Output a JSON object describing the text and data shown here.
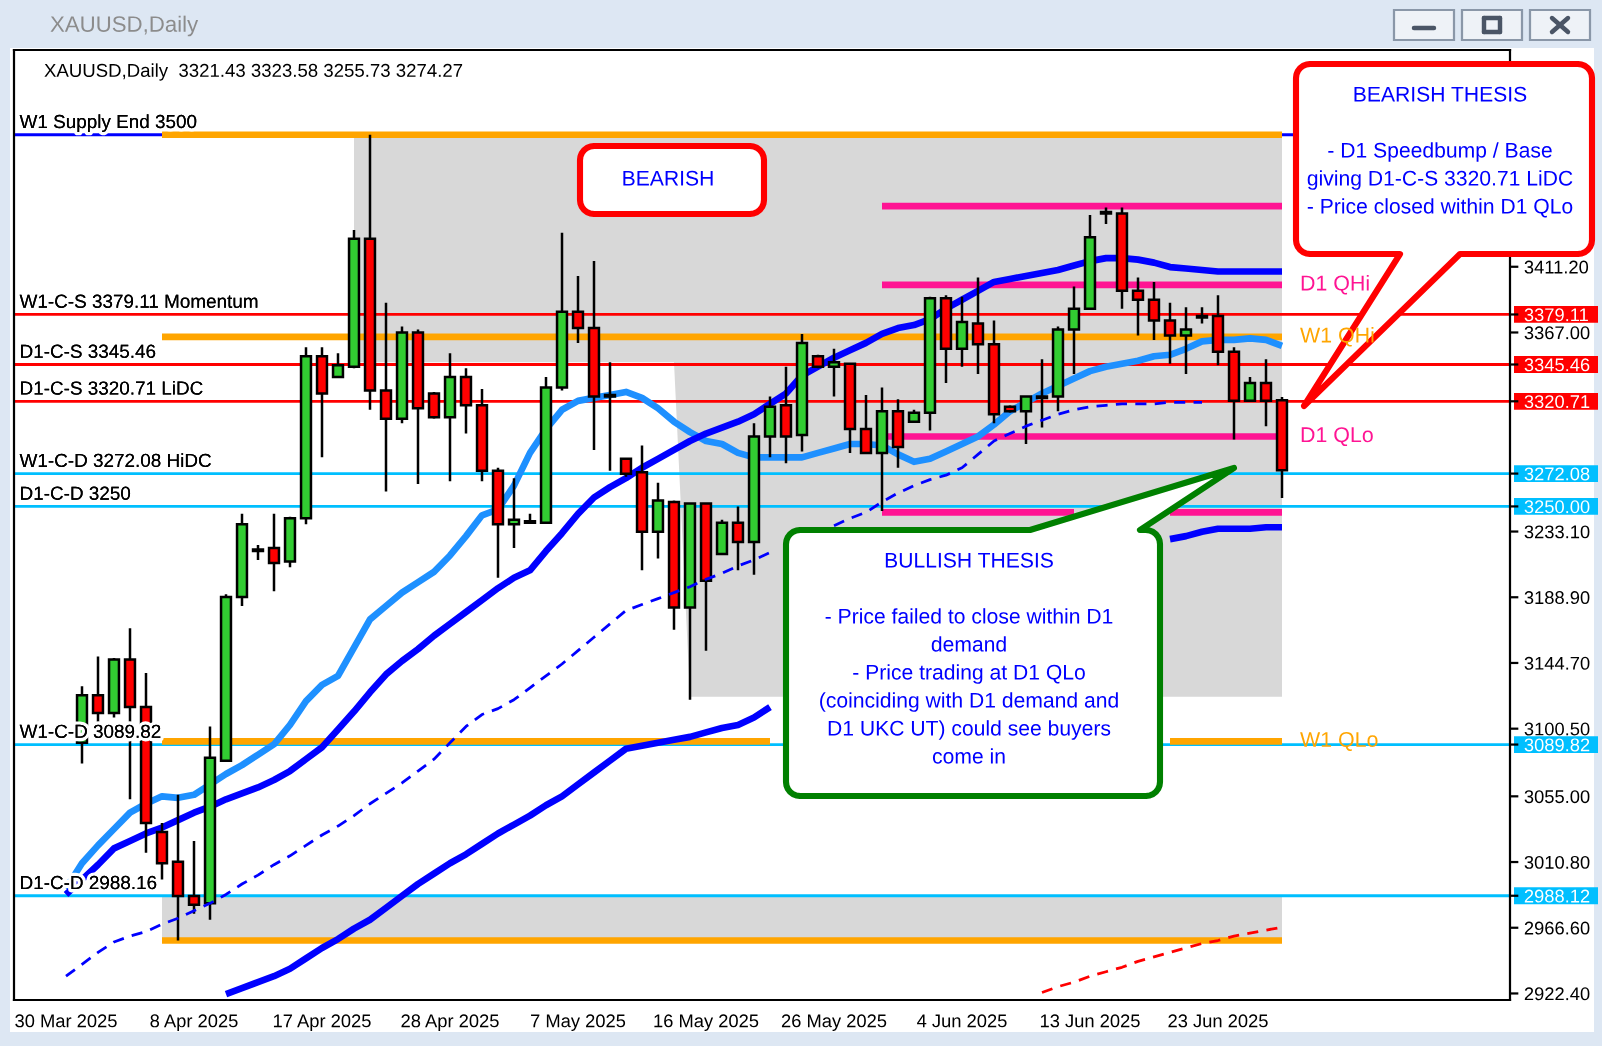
{
  "chart_data": {
    "type": "candlestick",
    "title": "XAUUSD,Daily",
    "subtitle": "XAUUSD,Daily  3321.43 3323.58 3255.73 3274.27",
    "categories": [
      "30 Mar 2025",
      null,
      null,
      null,
      null,
      null,
      null,
      null,
      "8 Apr 2025",
      null,
      null,
      null,
      null,
      null,
      null,
      null,
      "17 Apr 2025",
      null,
      null,
      null,
      null,
      null,
      null,
      null,
      "28 Apr 2025",
      null,
      null,
      null,
      null,
      null,
      null,
      null,
      "7 May 2025",
      null,
      null,
      null,
      null,
      null,
      null,
      null,
      "16 May 2025",
      null,
      null,
      null,
      null,
      null,
      null,
      null,
      "26 May 2025",
      null,
      null,
      null,
      null,
      null,
      null,
      null,
      "4 Jun 2025",
      null,
      null,
      null,
      null,
      null,
      null,
      null,
      "13 Jun 2025",
      null,
      null,
      null,
      null,
      null,
      null,
      null,
      "23 Jun 2025",
      null,
      null,
      null,
      null
    ],
    "ylim": [
      2918,
      3557
    ],
    "yticks": [
      {
        "value": 3411.2,
        "label": "3411.20"
      },
      {
        "value": 3379.11,
        "label": "3379.11"
      },
      {
        "value": 3367,
        "label": "3367.00"
      },
      {
        "value": 3345.46,
        "label": "3345.46"
      },
      {
        "value": 3320.71,
        "label": "3320.71"
      },
      {
        "value": 3272.08,
        "label": "3272.08"
      },
      {
        "value": 3250,
        "label": "3250.00"
      },
      {
        "value": 3233.1,
        "label": "3233.10"
      },
      {
        "value": 3188.9,
        "label": "3188.90"
      },
      {
        "value": 3144.7,
        "label": "3144.70"
      },
      {
        "value": 3100.5,
        "label": "3100.50"
      },
      {
        "value": 3089.82,
        "label": "3089.82"
      },
      {
        "value": 3055,
        "label": "3055.00"
      },
      {
        "value": 3010.8,
        "label": "3010.80"
      },
      {
        "value": 2988.12,
        "label": "2988.12"
      },
      {
        "value": 2966.6,
        "label": "2966.60"
      },
      {
        "value": 2922.4,
        "label": "2922.40"
      }
    ],
    "series": [
      {
        "type": "line",
        "color": "#ffa500",
        "values": [
          null,
          null,
          null,
          null,
          null,
          null,
          3500,
          3500,
          3500,
          3500,
          3500,
          3500,
          3500,
          3500,
          3500,
          3500,
          3500,
          3500,
          3500,
          3500,
          3500,
          3500,
          3500,
          3500,
          3500,
          3500,
          3500,
          3500,
          3500,
          3500,
          3500,
          3500,
          3500,
          3500,
          3500,
          3500,
          3500,
          3500,
          3500,
          3500,
          3500,
          3500,
          3500,
          3500,
          3500,
          3500,
          3500,
          3500,
          3500,
          3500,
          3500,
          3500,
          3500,
          3500,
          3500,
          3500,
          3500,
          3500,
          3500,
          3500,
          3500,
          3500,
          3500,
          3500,
          3500,
          3500,
          3500,
          3500,
          3500,
          3500,
          3500,
          3500,
          3500,
          3500,
          3500,
          3500,
          3500
        ],
        "upper": [
          null,
          null,
          null,
          null,
          null,
          null,
          null,
          null,
          null,
          null,
          null,
          null,
          null,
          null,
          null,
          null,
          null,
          null,
          3500,
          3500,
          3500,
          3500,
          3500,
          3500,
          3500,
          3500,
          3500,
          3500,
          3500,
          3500,
          3500,
          3500,
          3500,
          3500,
          3500,
          3500,
          3500,
          3500,
          3500,
          3500,
          3500,
          3500,
          3500,
          3500,
          3500,
          3500,
          null,
          null,
          null,
          null,
          null,
          null,
          null,
          null,
          null,
          null,
          null,
          null,
          null,
          null,
          null,
          null,
          null,
          null,
          null,
          null,
          null,
          null,
          null,
          3500,
          3500,
          3500,
          3500,
          3500,
          3500,
          3500,
          3500
        ],
        "lower": [
          null,
          null,
          null,
          null,
          null,
          null,
          null,
          null,
          null,
          null,
          null,
          null,
          null,
          null,
          null,
          null,
          null,
          null,
          3347,
          3347,
          3347,
          3347,
          3347,
          3347,
          3347,
          3347,
          3347,
          3347,
          3347,
          3347,
          3347,
          3347,
          3347,
          3347,
          3347,
          3347,
          3347,
          3347,
          3347,
          3122,
          3122,
          3122,
          3122,
          3122,
          3122,
          3122,
          null,
          null,
          null,
          null,
          null,
          null,
          null,
          null,
          null,
          null,
          null,
          null,
          null,
          null,
          null,
          null,
          null,
          null,
          null,
          null,
          null,
          null,
          null,
          3122,
          3122,
          3122,
          3122,
          3122,
          3122,
          3122,
          3122
        ]
      },
      {
        "type": "line",
        "color": "#ffa500",
        "name": "W1 QHi",
        "values": [
          null,
          null,
          null,
          null,
          null,
          null,
          3364,
          3364,
          3364,
          3364,
          3364,
          3364,
          3364,
          3364,
          3364,
          3364,
          3364,
          3364,
          3364,
          3364,
          3364,
          3364,
          3364,
          3364,
          3364,
          3364,
          3364,
          3364,
          3364,
          3364,
          3364,
          3364,
          3364,
          3364,
          3364,
          3364,
          3364,
          3364,
          3364,
          3364,
          3364,
          3364,
          3364,
          3364,
          3364,
          3364,
          3364,
          3364,
          3364,
          3364,
          3364,
          3364,
          3364,
          3364,
          3364,
          3364,
          3364,
          3364,
          3364,
          3364,
          3364,
          3364,
          3364,
          3364,
          3364,
          3364,
          3364,
          3364,
          3364,
          3364,
          3364,
          3364,
          3364,
          3364,
          3364,
          3364,
          3364
        ]
      },
      {
        "type": "line",
        "color": "#ffa500",
        "name": "W1 QLo",
        "values": [
          null,
          null,
          null,
          null,
          null,
          null,
          3092,
          3092,
          3092,
          3092,
          3092,
          3092,
          3092,
          3092,
          3092,
          3092,
          3092,
          3092,
          3092,
          3092,
          3092,
          3092,
          3092,
          3092,
          3092,
          3092,
          3092,
          3092,
          3092,
          3092,
          3092,
          3092,
          3092,
          3092,
          3092,
          3092,
          3092,
          3092,
          3092,
          3092,
          3092,
          3092,
          3092,
          3092,
          3092,
          null,
          null,
          null,
          null,
          null,
          null,
          null,
          null,
          null,
          null,
          null,
          null,
          null,
          null,
          null,
          null,
          null,
          null,
          null,
          null,
          null,
          null,
          null,
          null,
          3092,
          3092,
          3092,
          3092,
          3092,
          3092,
          3092,
          3092
        ]
      },
      {
        "type": "line",
        "color": "#ffa500",
        "values": [
          null,
          null,
          null,
          null,
          null,
          null,
          2958,
          2958,
          2958,
          2958,
          2958,
          2958,
          2958,
          2958,
          2958,
          2958,
          2958,
          2958,
          2958,
          2958,
          2958,
          2958,
          2958,
          2958,
          2958,
          2958,
          2958,
          2958,
          2958,
          2958,
          2958,
          2958,
          2958,
          2958,
          2958,
          2958,
          2958,
          2958,
          2958,
          2958,
          2958,
          2958,
          2958,
          2958,
          2958,
          2958,
          2958,
          2958,
          2958,
          2958,
          2958,
          2958,
          2958,
          2958,
          2958,
          2958,
          2958,
          2958,
          2958,
          2958,
          2958,
          2958,
          2958,
          2958,
          2958,
          2958,
          2958,
          2958,
          2958,
          2958,
          2958,
          2958,
          2958,
          2958,
          2958,
          2958,
          2958
        ],
        "upper": [
          null,
          null,
          null,
          null,
          null,
          null,
          2988,
          2988,
          2988,
          2988,
          2988,
          2988,
          2988,
          2988,
          2988,
          2988,
          2988,
          2988,
          2988,
          2988,
          2988,
          2988,
          2988,
          2988,
          2988,
          2988,
          2988,
          2988,
          2988,
          2988,
          2988,
          2988,
          2988,
          2988,
          2988,
          2988,
          2988,
          2988,
          2988,
          2988,
          2988,
          2988,
          2988,
          2988,
          2988,
          2988,
          2988,
          2988,
          2988,
          2988,
          2988,
          2988,
          2988,
          2988,
          2988,
          2988,
          2988,
          2988,
          2988,
          2988,
          2988,
          2988,
          2988,
          2988,
          2988,
          2988,
          2988,
          2988,
          2988,
          2988,
          2988,
          2988,
          2988,
          2988,
          2988,
          2988,
          2988
        ],
        "lower": [
          null,
          null,
          null,
          null,
          null,
          null,
          2958,
          2958,
          2958,
          2958,
          2958,
          2958,
          2958,
          2958,
          2958,
          2958,
          2958,
          2958,
          2958,
          2958,
          2958,
          2958,
          2958,
          2958,
          2958,
          2958,
          2958,
          2958,
          2958,
          2958,
          2958,
          2958,
          2958,
          2958,
          2958,
          2958,
          2958,
          2958,
          2958,
          2958,
          2958,
          2958,
          2958,
          2958,
          2958,
          2958,
          2958,
          2958,
          2958,
          2958,
          2958,
          2958,
          2958,
          2958,
          2958,
          2958,
          2958,
          2958,
          2958,
          2958,
          2958,
          2958,
          2958,
          2958,
          2958,
          2958,
          2958,
          2958,
          2958,
          2958,
          2958,
          2958,
          2958,
          2958,
          2958,
          2958,
          2958
        ]
      },
      {
        "type": "line",
        "color": "#ff1493",
        "values": [
          null,
          null,
          null,
          null,
          null,
          null,
          null,
          null,
          null,
          null,
          null,
          null,
          null,
          null,
          null,
          null,
          null,
          null,
          null,
          null,
          null,
          null,
          null,
          null,
          null,
          null,
          null,
          null,
          null,
          null,
          null,
          null,
          null,
          null,
          null,
          null,
          null,
          null,
          null,
          null,
          null,
          null,
          null,
          null,
          null,
          null,
          null,
          null,
          null,
          null,
          null,
          3452,
          3452,
          3452,
          3452,
          3452,
          3452,
          3452,
          3452,
          3452,
          3452,
          3452,
          3452,
          3452,
          3452,
          3452,
          3452,
          3452,
          3452,
          3452,
          3452,
          3452,
          3452,
          3452,
          3452,
          3452,
          3452
        ]
      },
      {
        "type": "line",
        "color": "#ff1493",
        "name": "D1 QHi",
        "values": [
          null,
          null,
          null,
          null,
          null,
          null,
          null,
          null,
          null,
          null,
          null,
          null,
          null,
          null,
          null,
          null,
          null,
          null,
          null,
          null,
          null,
          null,
          null,
          null,
          null,
          null,
          null,
          null,
          null,
          null,
          null,
          null,
          null,
          null,
          null,
          null,
          null,
          null,
          null,
          null,
          null,
          null,
          null,
          null,
          null,
          null,
          null,
          null,
          null,
          null,
          null,
          3399,
          3399,
          3399,
          3399,
          3399,
          3399,
          3399,
          3399,
          3399,
          3399,
          3399,
          3399,
          3399,
          3399,
          3399,
          3399,
          3399,
          3399,
          3399,
          3399,
          3399,
          3399,
          3399,
          3399,
          3399,
          3399
        ]
      },
      {
        "type": "line",
        "color": "#ff1493",
        "name": "D1 QLo",
        "values": [
          null,
          null,
          null,
          null,
          null,
          null,
          null,
          null,
          null,
          null,
          null,
          null,
          null,
          null,
          null,
          null,
          null,
          null,
          null,
          null,
          null,
          null,
          null,
          null,
          null,
          null,
          null,
          null,
          null,
          null,
          null,
          null,
          null,
          null,
          null,
          null,
          null,
          null,
          null,
          null,
          null,
          null,
          null,
          null,
          null,
          null,
          null,
          null,
          null,
          null,
          null,
          3297,
          3297,
          3297,
          3297,
          3297,
          3297,
          3297,
          3297,
          3297,
          3297,
          3297,
          3297,
          3297,
          3297,
          3297,
          3297,
          3297,
          3297,
          3297,
          3297,
          3297,
          3297,
          3297,
          3297,
          3297,
          3297
        ]
      },
      {
        "type": "line",
        "color": "#ff1493",
        "values": [
          null,
          null,
          null,
          null,
          null,
          null,
          null,
          null,
          null,
          null,
          null,
          null,
          null,
          null,
          null,
          null,
          null,
          null,
          null,
          null,
          null,
          null,
          null,
          null,
          null,
          null,
          null,
          null,
          null,
          null,
          null,
          null,
          null,
          null,
          null,
          null,
          null,
          null,
          null,
          null,
          null,
          null,
          null,
          null,
          null,
          null,
          null,
          null,
          null,
          null,
          null,
          3246,
          3246,
          3246,
          3246,
          3246,
          3246,
          3246,
          3246,
          3246,
          3246,
          3246,
          3246,
          3246,
          null,
          null,
          null,
          null,
          null,
          3246,
          3246,
          3246,
          3246,
          3246,
          3246,
          3246,
          3246
        ]
      },
      {
        "type": "line",
        "color": "#1e90ff",
        "values": [
          2993,
          3010,
          3022,
          3033,
          3044,
          3050,
          3055,
          3054,
          3056,
          3063,
          3070,
          3076,
          3083,
          3090,
          3103,
          3119,
          3130,
          3136,
          3155,
          3174,
          3183,
          3192,
          3199,
          3206,
          3217,
          3230,
          3244,
          3248,
          3264,
          3286,
          3302,
          3315,
          3321,
          3323,
          3325,
          3327,
          3323,
          3316,
          3307,
          3300,
          3294,
          3292,
          3286,
          3283,
          3283,
          3283,
          3283,
          3286,
          3289,
          3292,
          3292,
          3291,
          3285,
          3280,
          3282,
          3287,
          3292,
          3297,
          3305,
          3314,
          3320,
          3326,
          3331,
          3336,
          3341,
          3344,
          3346,
          3348,
          3351,
          3352,
          3356,
          3361,
          3362,
          3362,
          3363,
          3362,
          3358
        ]
      },
      {
        "type": "line",
        "color": "#0000ff",
        "values": [
          2989,
          2999,
          3009,
          3020,
          3025,
          3030,
          3034,
          3039,
          3044,
          3048,
          3053,
          3057,
          3061,
          3066,
          3072,
          3080,
          3088,
          3100,
          3112,
          3125,
          3137,
          3146,
          3154,
          3163,
          3171,
          3179,
          3187,
          3195,
          3202,
          3207,
          3220,
          3232,
          3245,
          3256,
          3263,
          3269,
          3276,
          3282,
          3288,
          3294,
          3299,
          3303,
          3307,
          3312,
          3319,
          3326,
          3338,
          3344,
          3350,
          3355,
          3360,
          3366,
          3370,
          3372,
          3376,
          3383,
          3389,
          3395,
          3401,
          3403,
          3405,
          3407,
          3409,
          3412,
          3415,
          3417,
          3417,
          3416,
          3414,
          3411,
          3410,
          3409,
          3408,
          3408,
          3408,
          3408,
          3408
        ]
      },
      {
        "type": "line",
        "color": "#0000ff",
        "line_style": "dashed",
        "values": [
          2934,
          2942,
          2950,
          2957,
          2961,
          2964,
          2969,
          2973,
          2978,
          2983,
          2989,
          2996,
          3002,
          3009,
          3015,
          3022,
          3029,
          3035,
          3042,
          3050,
          3057,
          3064,
          3072,
          3080,
          3091,
          3102,
          3110,
          3114,
          3120,
          3128,
          3136,
          3144,
          3153,
          3162,
          3171,
          3180,
          3184,
          3188,
          3192,
          3196,
          3201,
          3205,
          3210,
          3214,
          3219,
          null,
          null,
          null,
          3237,
          3242,
          3246,
          3253,
          3259,
          3264,
          3268,
          3271,
          3276,
          3285,
          3294,
          3299,
          3304,
          3308,
          3312,
          3315,
          3317,
          3318,
          3319,
          3319,
          3319,
          3320,
          3320,
          3320,
          null,
          null,
          null,
          null,
          null
        ]
      },
      {
        "type": "line",
        "color": "#ff0000",
        "line_style": "dashed",
        "values": [
          null,
          null,
          null,
          null,
          null,
          null,
          null,
          null,
          null,
          null,
          null,
          null,
          null,
          null,
          null,
          null,
          null,
          null,
          null,
          null,
          null,
          null,
          null,
          null,
          null,
          null,
          null,
          null,
          null,
          null,
          null,
          null,
          null,
          null,
          null,
          null,
          null,
          null,
          null,
          null,
          null,
          null,
          null,
          null,
          null,
          null,
          null,
          null,
          null,
          null,
          null,
          null,
          null,
          null,
          null,
          null,
          null,
          null,
          null,
          null,
          null,
          2923,
          2927,
          2930,
          2934,
          2937,
          2940,
          2944,
          2947,
          2950,
          2953,
          2956,
          2958,
          2961,
          2963,
          2965,
          2967
        ]
      },
      {
        "type": "line",
        "color": "#0000ff",
        "values": [
          null,
          null,
          null,
          null,
          null,
          null,
          null,
          null,
          null,
          null,
          2922,
          2926,
          2930,
          2934,
          2939,
          2946,
          2953,
          2959,
          2966,
          2972,
          2980,
          2988,
          2996,
          3003,
          3010,
          3016,
          3023,
          3030,
          3036,
          3042,
          3049,
          3055,
          3063,
          3071,
          3079,
          3087,
          3089,
          3091,
          3093,
          3095,
          3098,
          3101,
          3103,
          3108,
          3115,
          null,
          null,
          null,
          null,
          null,
          null,
          null,
          null,
          null,
          null,
          null,
          null,
          null,
          null,
          null,
          null,
          null,
          null,
          null,
          null,
          null,
          null,
          null,
          null,
          3228,
          3230,
          3233,
          3235,
          3235,
          3235,
          3236,
          3236
        ]
      },
      {
        "ohlc": [
          null,
          [
            3091,
            3129,
            3077,
            3123
          ],
          [
            3123,
            3149,
            3102,
            3111
          ],
          [
            3111,
            3148,
            3108,
            3147
          ],
          [
            3147,
            3168,
            3053,
            3115
          ],
          [
            3115,
            3138,
            3017,
            3037
          ],
          [
            3031,
            3037,
            2999,
            3010
          ],
          [
            3011,
            3056,
            2958,
            2988
          ],
          [
            2988,
            3025,
            2976,
            2982
          ],
          [
            2983,
            3102,
            2972,
            3081
          ],
          [
            3079,
            3191,
            3079,
            3189
          ],
          [
            3189,
            3245,
            3183,
            3238
          ],
          [
            3221,
            3224,
            3214,
            3220
          ],
          [
            3222,
            3245,
            3193,
            3212
          ],
          [
            3213,
            3243,
            3209,
            3242
          ],
          [
            3242,
            3357,
            3238,
            3351
          ],
          [
            3351,
            3357,
            3283,
            3326
          ],
          [
            3337,
            3353,
            3337,
            3345
          ],
          [
            3344,
            3436,
            3343,
            3430
          ],
          [
            3430,
            3500,
            3315,
            3328
          ],
          [
            3328,
            3387,
            3260,
            3309
          ],
          [
            3309,
            3371,
            3306,
            3367
          ],
          [
            3367,
            3369,
            3265,
            3316
          ],
          [
            3326,
            3327,
            3309,
            3310
          ],
          [
            3310,
            3353,
            3267,
            3337
          ],
          [
            3337,
            3343,
            3299,
            3318
          ],
          [
            3318,
            3329,
            3267,
            3274
          ],
          [
            3274,
            3276,
            3202,
            3238
          ],
          [
            3238,
            3269,
            3222,
            3241
          ],
          [
            3240,
            3245,
            3239,
            3239
          ],
          [
            3239,
            3337,
            3239,
            3330
          ],
          [
            3330,
            3434,
            3328,
            3381
          ],
          [
            3381,
            3405,
            3360,
            3370
          ],
          [
            3370,
            3415,
            3288,
            3324
          ],
          [
            3325,
            3347,
            3274,
            3324
          ],
          [
            3282,
            3282,
            3270,
            3272
          ],
          [
            3273,
            3291,
            3207,
            3233
          ],
          [
            3233,
            3266,
            3215,
            3254
          ],
          [
            3253,
            3254,
            3167,
            3182
          ],
          [
            3182,
            3252,
            3120,
            3252
          ],
          [
            3252,
            3252,
            3153,
            3200
          ],
          [
            3218,
            3241,
            3218,
            3239
          ],
          [
            3239,
            3250,
            3207,
            3226
          ],
          [
            3226,
            3306,
            3204,
            3297
          ],
          [
            3297,
            3324,
            3283,
            3317
          ],
          [
            3318,
            3344,
            3279,
            3297
          ],
          [
            3298,
            3366,
            3287,
            3360
          ],
          [
            3351,
            3352,
            3343,
            3344
          ],
          [
            3344,
            3356,
            3324,
            3347
          ],
          [
            3346,
            3346,
            3286,
            3302
          ],
          [
            3302,
            3325,
            3286,
            3286
          ],
          [
            3286,
            3330,
            3247,
            3314
          ],
          [
            3314,
            3322,
            3276,
            3290
          ],
          [
            3307,
            3315,
            3307,
            3313
          ],
          [
            3313,
            3391,
            3301,
            3390
          ],
          [
            3390,
            3392,
            3333,
            3356
          ],
          [
            3356,
            3391,
            3344,
            3374
          ],
          [
            3373,
            3404,
            3339,
            3359
          ],
          [
            3359,
            3375,
            3306,
            3312
          ],
          [
            3317,
            3318,
            3313,
            3314
          ],
          [
            3314,
            3324,
            3292,
            3324
          ],
          [
            3324,
            3349,
            3303,
            3323
          ],
          [
            3324,
            3371,
            3314,
            3369
          ],
          [
            3369,
            3398,
            3339,
            3383
          ],
          [
            3383,
            3446,
            3383,
            3431
          ],
          [
            3448,
            3451,
            3440,
            3447
          ],
          [
            3447,
            3451,
            3383,
            3395
          ],
          [
            3395,
            3404,
            3365,
            3389
          ],
          [
            3389,
            3401,
            3362,
            3375
          ],
          [
            3375,
            3387,
            3346,
            3365
          ],
          [
            3365,
            3384,
            3339,
            3369
          ],
          [
            3378,
            3384,
            3373,
            3377
          ],
          [
            3378,
            3392,
            3345,
            3354
          ],
          [
            3354,
            3357,
            3295,
            3321
          ],
          [
            3321,
            3337,
            3321,
            3333
          ],
          [
            3333,
            3349,
            3304,
            3321
          ],
          [
            3321.43,
            3323.58,
            3255.73,
            3274.27
          ]
        ],
        "colors": [
          null,
          "#32cd32",
          "#ff0000",
          "#32cd32",
          "#ff0000",
          "#ff0000",
          "#ff0000",
          "#ff0000",
          "#ff0000",
          "#32cd32",
          "#32cd32",
          "#32cd32",
          "#000000",
          "#ff0000",
          "#32cd32",
          "#32cd32",
          "#ff0000",
          "#32cd32",
          "#32cd32",
          "#ff0000",
          "#ff0000",
          "#32cd32",
          "#ff0000",
          "#ff0000",
          "#32cd32",
          "#ff0000",
          "#ff0000",
          "#ff0000",
          "#32cd32",
          "#000000",
          "#32cd32",
          "#32cd32",
          "#ff0000",
          "#ff0000",
          "#000000",
          "#ff0000",
          "#ff0000",
          "#32cd32",
          "#ff0000",
          "#32cd32",
          "#ff0000",
          "#32cd32",
          "#ff0000",
          "#32cd32",
          "#32cd32",
          "#ff0000",
          "#32cd32",
          "#ff0000",
          "#32cd32",
          "#ff0000",
          "#ff0000",
          "#32cd32",
          "#ff0000",
          "#32cd32",
          "#32cd32",
          "#ff0000",
          "#32cd32",
          "#ff0000",
          "#ff0000",
          "#ff0000",
          "#32cd32",
          "#000000",
          "#32cd32",
          "#32cd32",
          "#32cd32",
          "#000000",
          "#ff0000",
          "#ff0000",
          "#ff0000",
          "#ff0000",
          "#32cd32",
          "#000000",
          "#ff0000",
          "#ff0000",
          "#32cd32",
          "#ff0000",
          "#ff0000"
        ]
      }
    ],
    "ref_lines": [
      {
        "axis": "y",
        "value": 3500,
        "label": "W1 Supply End 3500",
        "color": "#0000ff"
      },
      {
        "axis": "y",
        "value": 3379.11,
        "label": "W1-C-S 3379.11 Momentum",
        "color": "#ff0000"
      },
      {
        "axis": "y",
        "value": 3345.46,
        "label": "D1-C-S 3345.46",
        "color": "#ff0000"
      },
      {
        "axis": "y",
        "value": 3320.71,
        "label": "D1-C-S 3320.71 LiDC",
        "color": "#ff0000"
      },
      {
        "axis": "y",
        "value": 3272.08,
        "label": "W1-C-D 3272.08 HiDC",
        "color": "#00bfff"
      },
      {
        "axis": "y",
        "value": 3250,
        "label": "D1-C-D 3250",
        "color": "#00bfff"
      },
      {
        "axis": "y",
        "value": 3089.82,
        "label": "W1-C-D 3089.82",
        "color": "#00bfff"
      },
      {
        "axis": "y",
        "value": 2988.12,
        "label": "D1-C-D 2988.16",
        "color": "#00bfff"
      }
    ],
    "annotations": [
      "BEARISH",
      "BEARISH THESIS\n\n- D1 Speedbump / Base\ngiving D1-C-S 3320.71 LiDC\n- Price closed within D1 QLo",
      "BULLISH THESIS\n\n- Price failed to close within D1\ndemand\n- Price trading at D1 QLo\n(coinciding with D1 demand and\nD1 UKC UT) could see buyers\ncome in"
    ]
  }
}
